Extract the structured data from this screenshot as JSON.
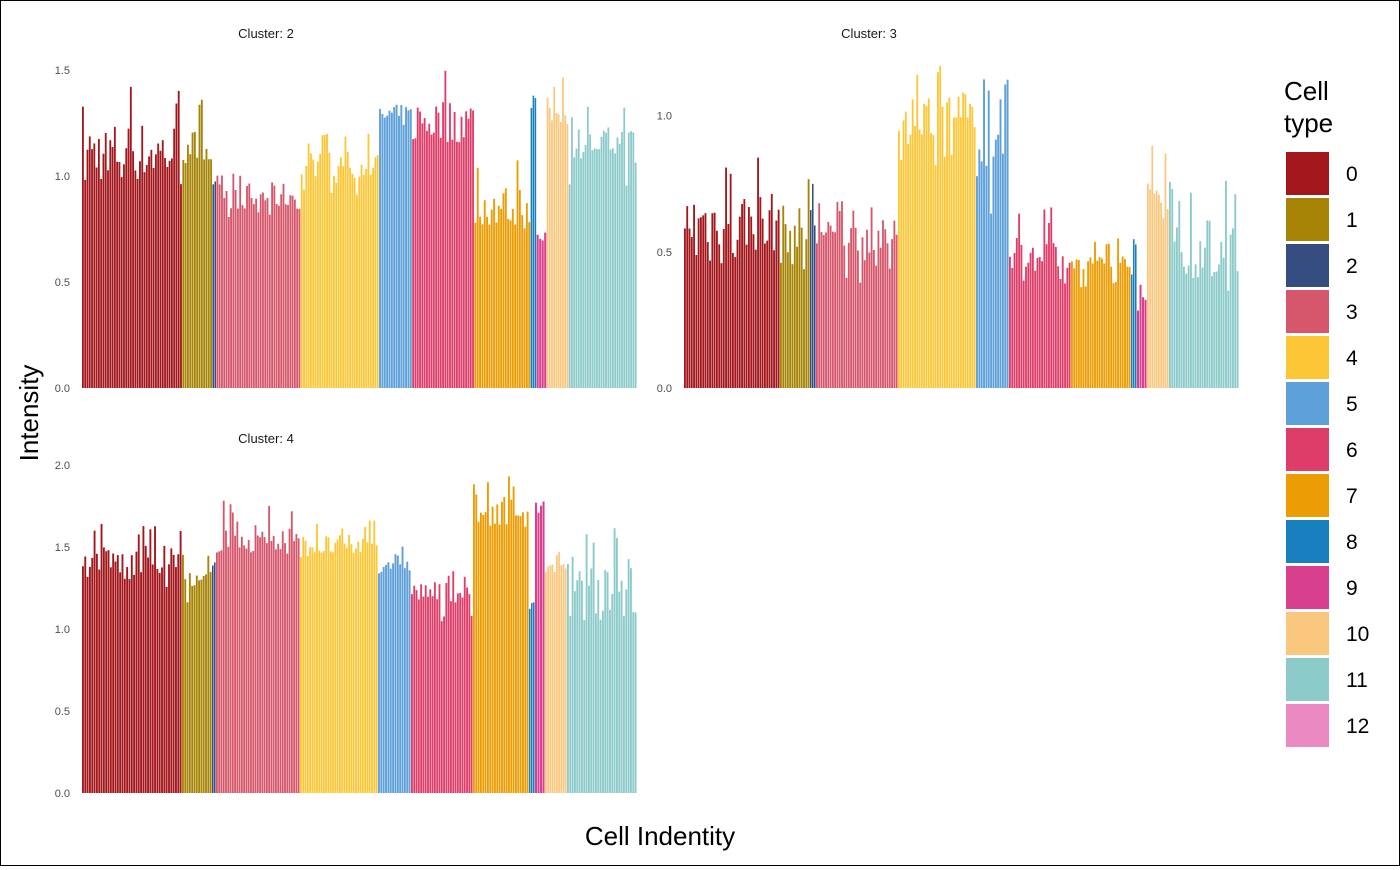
{
  "chart_data": {
    "type": "bar",
    "xlabel": "Cell Indentity",
    "ylabel": "Intensity",
    "grid": false,
    "legend": {
      "title_lines": [
        "Cell",
        "type"
      ],
      "placement": "right",
      "entries": [
        {
          "name": "0",
          "color": "#A3161B"
        },
        {
          "name": "1",
          "color": "#A78405"
        },
        {
          "name": "2",
          "color": "#344C80"
        },
        {
          "name": "3",
          "color": "#D6566B"
        },
        {
          "name": "4",
          "color": "#FCC736"
        },
        {
          "name": "5",
          "color": "#5EA1DA"
        },
        {
          "name": "6",
          "color": "#DF3D69"
        },
        {
          "name": "7",
          "color": "#EC9D04"
        },
        {
          "name": "8",
          "color": "#1980C0"
        },
        {
          "name": "9",
          "color": "#D8408F"
        },
        {
          "name": "10",
          "color": "#FAC77F"
        },
        {
          "name": "11",
          "color": "#8DCBCB"
        },
        {
          "name": "12",
          "color": "#EB89C3"
        }
      ]
    },
    "panels": [
      {
        "title": "Cluster: 2",
        "ylim": [
          0,
          1.5
        ],
        "yticks": [
          "0.0",
          "0.5",
          "1.0",
          "1.5"
        ],
        "groups": [
          {
            "type": "0",
            "typical": 1.1,
            "max": 1.46,
            "min": 0.95
          },
          {
            "type": "1",
            "typical": 1.12,
            "max": 1.36,
            "min": 0.9
          },
          {
            "type": "2",
            "typical": 0.95,
            "max": 0.98,
            "min": 0.9
          },
          {
            "type": "3",
            "typical": 0.9,
            "max": 1.06,
            "min": 0.78
          },
          {
            "type": "4",
            "typical": 1.05,
            "max": 1.2,
            "min": 0.9
          },
          {
            "type": "5",
            "typical": 1.28,
            "max": 1.41,
            "min": 1.18
          },
          {
            "type": "6",
            "typical": 1.25,
            "max": 1.51,
            "min": 1.15
          },
          {
            "type": "7",
            "typical": 0.85,
            "max": 1.1,
            "min": 0.75
          },
          {
            "type": "8",
            "typical": 1.33,
            "max": 1.38,
            "min": 1.3
          },
          {
            "type": "9",
            "typical": 0.7,
            "max": 0.78,
            "min": 0.62
          },
          {
            "type": "10",
            "typical": 1.3,
            "max": 1.47,
            "min": 1.15
          },
          {
            "type": "11",
            "typical": 1.15,
            "max": 1.34,
            "min": 0.95
          }
        ]
      },
      {
        "title": "Cluster: 3",
        "ylim": [
          0,
          1.2
        ],
        "yticks": [
          "0.0",
          "0.5",
          "1.0"
        ],
        "groups": [
          {
            "type": "0",
            "typical": 0.6,
            "max": 0.88,
            "min": 0.45
          },
          {
            "type": "1",
            "typical": 0.55,
            "max": 0.83,
            "min": 0.4
          },
          {
            "type": "2",
            "typical": 0.6,
            "max": 0.77,
            "min": 0.55
          },
          {
            "type": "3",
            "typical": 0.55,
            "max": 0.7,
            "min": 0.38
          },
          {
            "type": "4",
            "typical": 1.0,
            "max": 1.2,
            "min": 0.8
          },
          {
            "type": "5",
            "typical": 0.78,
            "max": 1.18,
            "min": 0.65
          },
          {
            "type": "6",
            "typical": 0.5,
            "max": 0.67,
            "min": 0.38
          },
          {
            "type": "7",
            "typical": 0.45,
            "max": 0.55,
            "min": 0.32
          },
          {
            "type": "8",
            "typical": 0.45,
            "max": 0.55,
            "min": 0.4
          },
          {
            "type": "9",
            "typical": 0.3,
            "max": 0.38,
            "min": 0.25
          },
          {
            "type": "10",
            "typical": 0.7,
            "max": 0.92,
            "min": 0.45
          },
          {
            "type": "11",
            "typical": 0.5,
            "max": 0.78,
            "min": 0.35
          }
        ]
      },
      {
        "title": "Cluster: 4",
        "ylim": [
          0,
          2.0
        ],
        "yticks": [
          "0.0",
          "0.5",
          "1.0",
          "1.5",
          "2.0"
        ],
        "groups": [
          {
            "type": "0",
            "typical": 1.4,
            "max": 1.65,
            "min": 1.25
          },
          {
            "type": "1",
            "typical": 1.25,
            "max": 1.5,
            "min": 1.05
          },
          {
            "type": "2",
            "typical": 1.4,
            "max": 1.5,
            "min": 1.35
          },
          {
            "type": "3",
            "typical": 1.55,
            "max": 1.8,
            "min": 1.4
          },
          {
            "type": "4",
            "typical": 1.5,
            "max": 1.67,
            "min": 1.3
          },
          {
            "type": "5",
            "typical": 1.4,
            "max": 1.55,
            "min": 1.25
          },
          {
            "type": "6",
            "typical": 1.22,
            "max": 1.38,
            "min": 1.0
          },
          {
            "type": "7",
            "typical": 1.72,
            "max": 1.95,
            "min": 1.6
          },
          {
            "type": "8",
            "typical": 1.15,
            "max": 1.25,
            "min": 1.08
          },
          {
            "type": "9",
            "typical": 1.72,
            "max": 1.8,
            "min": 1.6
          },
          {
            "type": "10",
            "typical": 1.35,
            "max": 1.47,
            "min": 1.25
          },
          {
            "type": "11",
            "typical": 1.3,
            "max": 1.63,
            "min": 1.05
          }
        ]
      }
    ]
  }
}
